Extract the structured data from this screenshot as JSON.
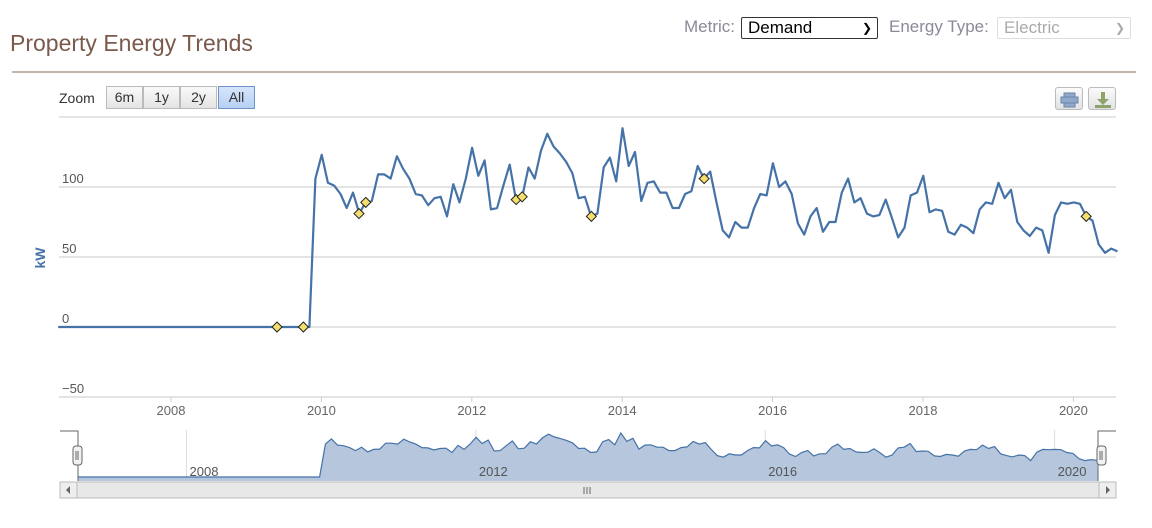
{
  "header": {
    "title": "Property Energy Trends",
    "metric_label": "Metric:",
    "metric_value": "Demand",
    "energy_type_label": "Energy Type:",
    "energy_type_value": "Electric"
  },
  "toolbar": {
    "zoom_label": "Zoom",
    "zoom_buttons": [
      "6m",
      "1y",
      "2y",
      "All"
    ],
    "active_zoom": "All",
    "print_icon": "printer-icon",
    "download_icon": "download-icon"
  },
  "colors": {
    "line": "#4572a7",
    "marker": "#f3de6e",
    "navigator_fill": "#b5c6dd",
    "title": "#7b5a4c"
  },
  "chart_data": {
    "type": "line",
    "title": "Property Energy Trends",
    "ylabel": "kW",
    "xlabel": "",
    "ylim": [
      -50,
      150
    ],
    "yticks": [
      {
        "v": -50,
        "label": "−50"
      },
      {
        "v": 0,
        "label": "0"
      },
      {
        "v": 50,
        "label": "50"
      },
      {
        "v": 100,
        "label": "100"
      }
    ],
    "xlim": [
      2006.5,
      2020.6
    ],
    "xticks": [
      "2008",
      "2010",
      "2012",
      "2014",
      "2016",
      "2018",
      "2020"
    ],
    "navigator_ticks": [
      "2008",
      "2012",
      "2016",
      "2020"
    ],
    "grid": true,
    "baseline_segment": {
      "from": 2006.5,
      "to": 2009.84,
      "value": 0
    },
    "series": [
      {
        "name": "Demand",
        "start": 2009.92,
        "step_months": 1,
        "values": [
          106,
          123,
          103,
          101,
          95,
          85,
          96,
          81,
          89,
          90,
          109,
          109,
          106,
          122,
          113,
          106,
          95,
          94,
          87,
          92,
          93,
          79,
          102,
          89,
          106,
          128,
          108,
          119,
          84,
          85,
          101,
          116,
          91,
          93,
          114,
          106,
          126,
          138,
          129,
          124,
          118,
          110,
          92,
          93,
          79,
          81,
          114,
          121,
          104,
          142,
          115,
          125,
          90,
          103,
          104,
          96,
          96,
          85,
          85,
          95,
          97,
          115,
          106,
          111,
          89,
          69,
          64,
          75,
          71,
          71,
          85,
          95,
          94,
          117,
          100,
          104,
          95,
          74,
          66,
          79,
          85,
          68,
          75,
          75,
          96,
          106,
          89,
          92,
          81,
          79,
          80,
          91,
          78,
          64,
          71,
          94,
          96,
          108,
          82,
          84,
          83,
          68,
          66,
          73,
          71,
          67,
          84,
          89,
          88,
          103,
          92,
          98,
          75,
          69,
          65,
          71,
          69,
          53,
          80,
          89,
          88,
          89,
          88,
          79,
          76,
          59,
          53,
          56,
          54
        ]
      }
    ],
    "markers": [
      [
        2009.41,
        0
      ],
      [
        2009.76,
        0
      ],
      [
        2010.5,
        81
      ],
      [
        2010.59,
        89
      ],
      [
        2012.59,
        91
      ],
      [
        2012.67,
        93
      ],
      [
        2013.59,
        79
      ],
      [
        2015.09,
        106
      ],
      [
        2020.17,
        79
      ]
    ]
  }
}
